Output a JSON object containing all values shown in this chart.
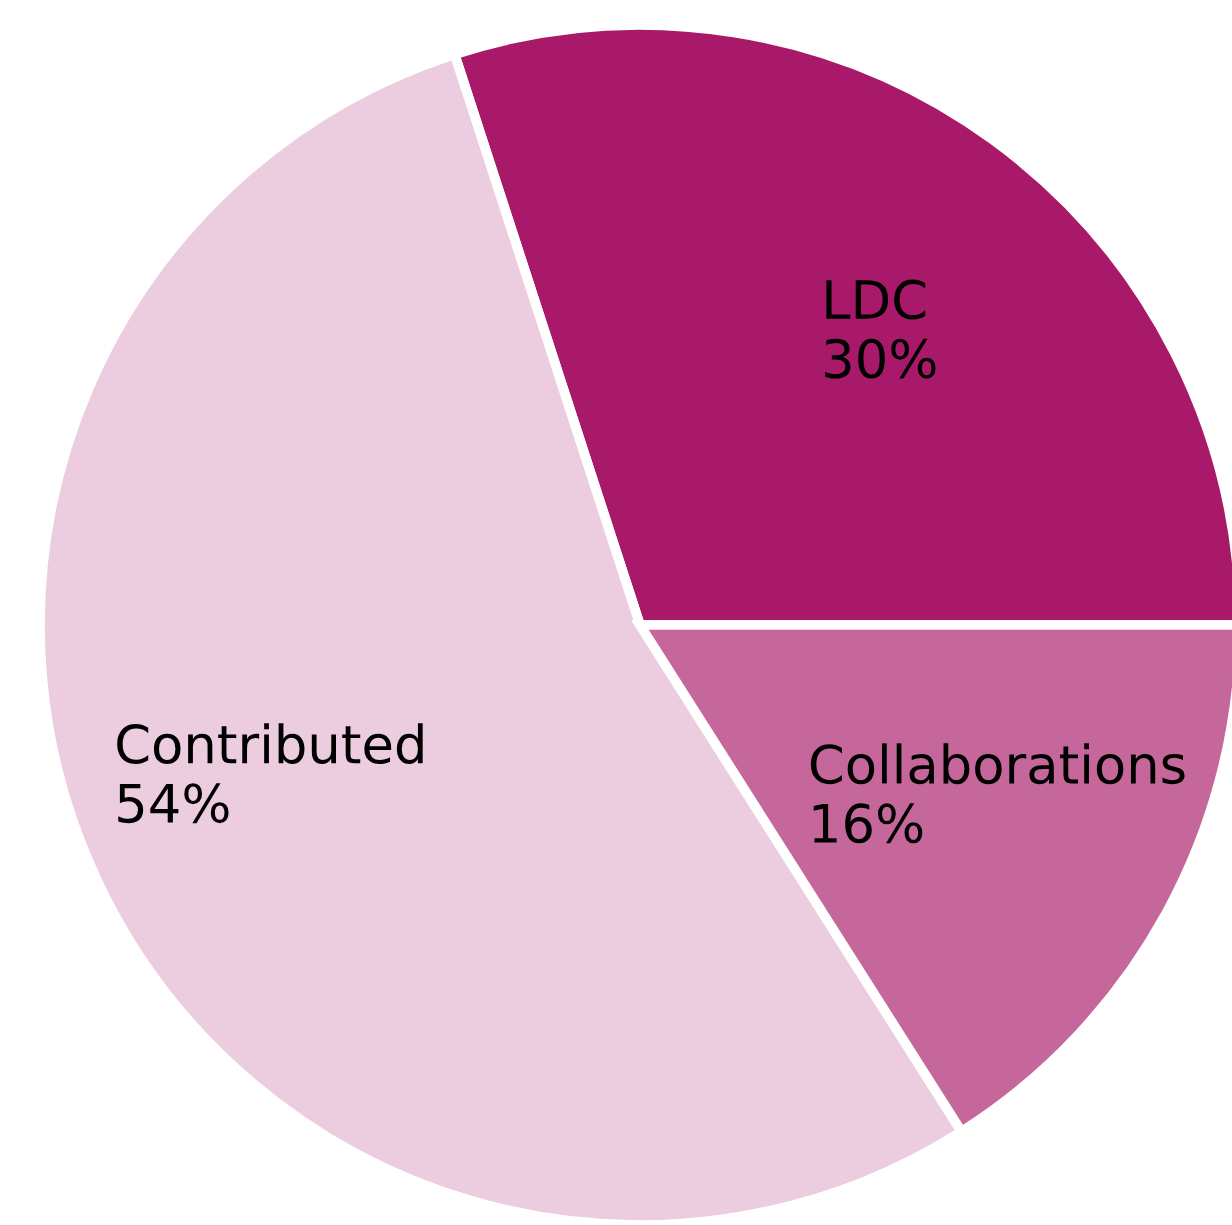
{
  "chart_data": {
    "type": "pie",
    "categories": [
      "LDC",
      "Contributed",
      "Collaborations"
    ],
    "values": [
      30,
      54,
      16
    ],
    "colors": [
      "#a8196a",
      "#ecccdf",
      "#c6679b"
    ],
    "value_labels": [
      "30%",
      "54%",
      "16%"
    ]
  }
}
